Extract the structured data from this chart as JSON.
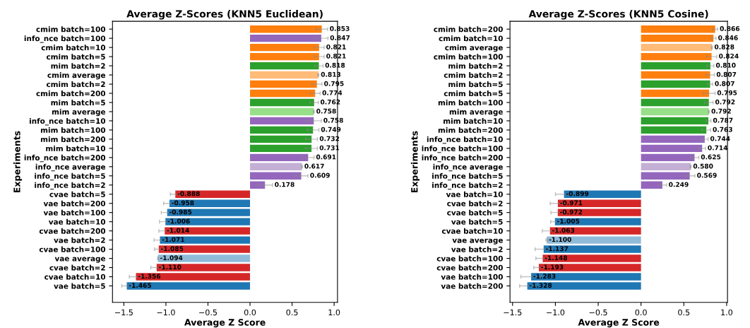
{
  "chart_data": [
    {
      "type": "bar",
      "orientation": "horizontal",
      "title": "Average Z-Scores (KNN5 Euclidean)",
      "xlabel": "Average Z Score",
      "ylabel": "Experiments",
      "categories": [
        "cmim batch=100",
        "info_nce batch=100",
        "cmim batch=10",
        "cmim batch=5",
        "mim batch=2",
        "cmim average",
        "cmim batch=2",
        "cmim batch=200",
        "mim batch=5",
        "mim average",
        "info_nce batch=10",
        "mim batch=100",
        "mim batch=200",
        "mim batch=10",
        "info_nce batch=200",
        "info_nce average",
        "info_nce batch=5",
        "info_nce batch=2",
        "cvae batch=5",
        "vae batch=200",
        "vae batch=100",
        "vae batch=10",
        "cvae batch=200",
        "vae batch=2",
        "cvae batch=100",
        "vae average",
        "cvae batch=2",
        "cvae batch=10",
        "vae batch=5"
      ],
      "values": [
        0.853,
        0.847,
        0.821,
        0.821,
        0.818,
        0.813,
        0.795,
        0.774,
        0.762,
        0.758,
        0.758,
        0.749,
        0.732,
        0.731,
        0.691,
        0.617,
        0.609,
        0.178,
        -0.888,
        -0.958,
        -0.985,
        -1.006,
        -1.014,
        -1.071,
        -1.085,
        -1.094,
        -1.11,
        -1.356,
        -1.465
      ],
      "value_labels": [
        "0.853",
        "0.847",
        "0.821",
        "0.821",
        "0.818",
        "0.813",
        "0.795",
        "0.774",
        "0.762",
        "0.758",
        "0.758",
        "0.749",
        "0.732",
        "0.731",
        "0.691",
        "0.617",
        "0.609",
        "0.178",
        "-0.888",
        "-0.958",
        "-0.985",
        "-1.006",
        "-1.014",
        "-1.071",
        "-1.085",
        "-1.094",
        "-1.110",
        "-1.356",
        "-1.465"
      ],
      "errors": [
        0.07,
        0.08,
        0.06,
        0.06,
        0.05,
        0.005,
        0.06,
        0.06,
        0.05,
        0.005,
        0.09,
        0.07,
        0.07,
        0.07,
        0.07,
        0.005,
        0.08,
        0.09,
        0.06,
        0.07,
        0.07,
        0.07,
        0.07,
        0.07,
        0.05,
        0.005,
        0.07,
        0.08,
        0.06
      ],
      "colors": [
        "#ff7f0e",
        "#9467bd",
        "#ff7f0e",
        "#ff7f0e",
        "#2ca02c",
        "#ffbb78",
        "#ff7f0e",
        "#ff7f0e",
        "#2ca02c",
        "#98df8a",
        "#9467bd",
        "#2ca02c",
        "#2ca02c",
        "#2ca02c",
        "#9467bd",
        "#c5b0d5",
        "#9467bd",
        "#9467bd",
        "#d62728",
        "#1f77b4",
        "#1f77b4",
        "#1f77b4",
        "#d62728",
        "#1f77b4",
        "#d62728",
        "#8fbbd9",
        "#d62728",
        "#d62728",
        "#1f77b4"
      ],
      "xlim": [
        -1.635,
        1.04
      ],
      "xticks": [
        {
          "value": -1.5,
          "label": "−1.5"
        },
        {
          "value": -1.0,
          "label": "−1.0"
        },
        {
          "value": -0.5,
          "label": "−0.5"
        },
        {
          "value": 0,
          "label": "0.0"
        },
        {
          "value": 0.5,
          "label": "0.5"
        },
        {
          "value": 1.0,
          "label": "1.0"
        }
      ]
    },
    {
      "type": "bar",
      "orientation": "horizontal",
      "title": "Average Z-Scores (KNN5 Cosine)",
      "xlabel": "Average Z Score",
      "ylabel": "Experiments",
      "categories": [
        "cmim batch=200",
        "cmim batch=10",
        "cmim average",
        "cmim batch=100",
        "mim batch=2",
        "cmim batch=2",
        "mim batch=5",
        "cmim batch=5",
        "mim batch=100",
        "mim average",
        "mim batch=10",
        "mim batch=200",
        "info_nce batch=10",
        "info_nce batch=100",
        "info_nce batch=200",
        "info_nce average",
        "info_nce batch=5",
        "info_nce batch=2",
        "vae batch=10",
        "cvae batch=2",
        "cvae batch=5",
        "vae batch=5",
        "cvae batch=10",
        "vae average",
        "vae batch=2",
        "cvae batch=100",
        "cvae batch=200",
        "vae batch=100",
        "vae batch=200"
      ],
      "values": [
        0.866,
        0.846,
        0.828,
        0.824,
        0.81,
        0.807,
        0.807,
        0.795,
        0.792,
        0.792,
        0.787,
        0.763,
        0.744,
        0.714,
        0.625,
        0.58,
        0.569,
        0.249,
        -0.899,
        -0.971,
        -0.972,
        -1.005,
        -1.063,
        -1.1,
        -1.137,
        -1.148,
        -1.193,
        -1.283,
        -1.328
      ],
      "value_labels": [
        "0.866",
        "0.846",
        "0.828",
        "0.824",
        "0.810",
        "0.807",
        "0.807",
        "0.795",
        "0.792",
        "0.792",
        "0.787",
        "0.763",
        "0.744",
        "0.714",
        "0.625",
        "0.580",
        "0.569",
        "0.249",
        "-0.899",
        "-0.971",
        "-0.972",
        "-1.005",
        "-1.063",
        "-1.100",
        "-1.137",
        "-1.148",
        "-1.193",
        "-1.283",
        "-1.328"
      ],
      "errors": [
        0.03,
        0.03,
        0.005,
        0.06,
        0.04,
        0.05,
        0.03,
        0.07,
        0.05,
        0.005,
        0.03,
        0.05,
        0.04,
        0.04,
        0.05,
        0.005,
        0.06,
        0.05,
        0.1,
        0.09,
        0.08,
        0.05,
        0.09,
        0.01,
        0.1,
        0.08,
        0.06,
        0.12,
        0.09
      ],
      "colors": [
        "#ff7f0e",
        "#ff7f0e",
        "#ffbb78",
        "#ff7f0e",
        "#2ca02c",
        "#ff7f0e",
        "#2ca02c",
        "#ff7f0e",
        "#2ca02c",
        "#98df8a",
        "#2ca02c",
        "#2ca02c",
        "#9467bd",
        "#9467bd",
        "#9467bd",
        "#c5b0d5",
        "#9467bd",
        "#9467bd",
        "#1f77b4",
        "#d62728",
        "#d62728",
        "#1f77b4",
        "#d62728",
        "#8fbbd9",
        "#1f77b4",
        "#d62728",
        "#d62728",
        "#1f77b4",
        "#1f77b4"
      ],
      "xlim": [
        -1.53,
        1.01
      ],
      "xticks": [
        {
          "value": -1.5,
          "label": "−1.5"
        },
        {
          "value": -1.0,
          "label": "−1.0"
        },
        {
          "value": -0.5,
          "label": "−0.5"
        },
        {
          "value": 0,
          "label": "0.0"
        },
        {
          "value": 0.5,
          "label": "0.5"
        },
        {
          "value": 1.0,
          "label": "1.0"
        }
      ]
    }
  ]
}
